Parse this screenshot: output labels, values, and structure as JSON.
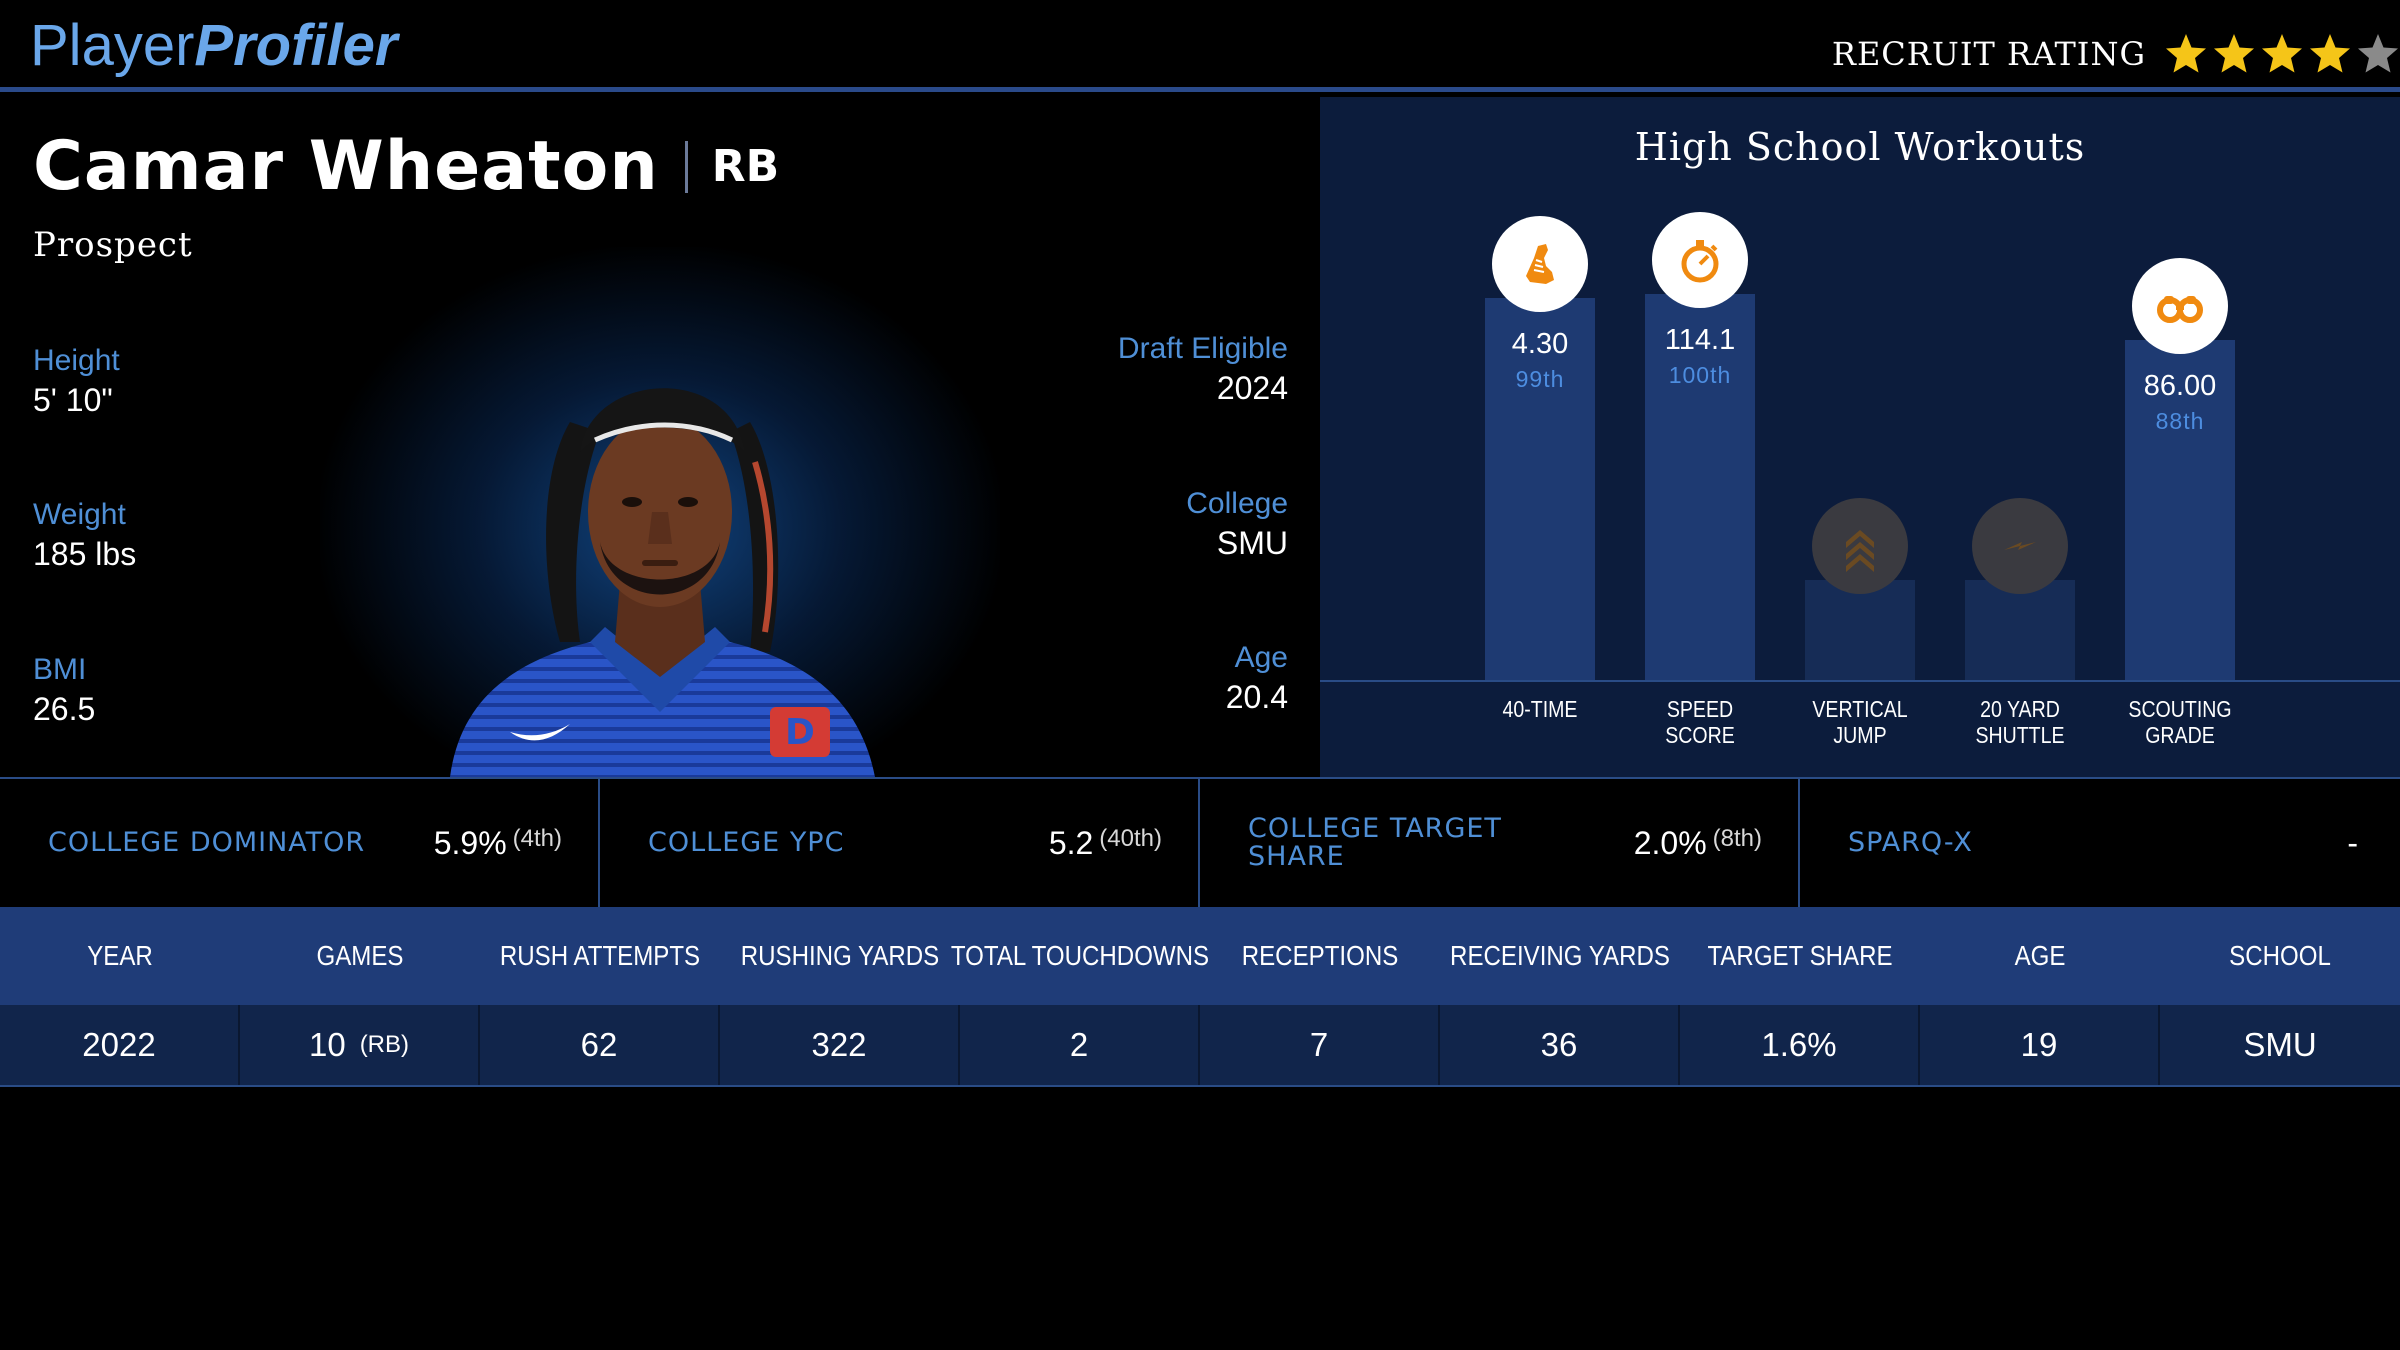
{
  "header": {
    "logo_part1": "Player",
    "logo_part2": "Profiler",
    "rating_label": "RECRUIT RATING",
    "stars_filled": 4,
    "stars_total": 5,
    "star_color": "#f5c518",
    "star_empty_color": "#8a8a8a"
  },
  "profile": {
    "name": "Camar Wheaton",
    "position": "RB",
    "status": "Prospect",
    "left_stats": [
      {
        "label": "Height",
        "value": "5' 10\""
      },
      {
        "label": "Weight",
        "value": "185 lbs"
      },
      {
        "label": "BMI",
        "value": "26.5"
      }
    ],
    "right_stats": [
      {
        "label": "Draft Eligible",
        "value": "2024"
      },
      {
        "label": "College",
        "value": "SMU"
      },
      {
        "label": "Age",
        "value": "20.4"
      }
    ]
  },
  "workouts": {
    "title": "High School Workouts",
    "items": [
      {
        "label_line1": "40-TIME",
        "label_line2": "",
        "value": "4.30",
        "percentile": "99th",
        "percentile_value": 99,
        "icon": "running-shoe-icon"
      },
      {
        "label_line1": "SPEED",
        "label_line2": "SCORE",
        "value": "114.1",
        "percentile": "100th",
        "percentile_value": 100,
        "icon": "stopwatch-icon"
      },
      {
        "label_line1": "VERTICAL",
        "label_line2": "JUMP",
        "value": "",
        "percentile": "",
        "percentile_value": null,
        "icon": "chevrons-up-icon"
      },
      {
        "label_line1": "20 YARD",
        "label_line2": "SHUTTLE",
        "value": "",
        "percentile": "",
        "percentile_value": null,
        "icon": "lightning-icon"
      },
      {
        "label_line1": "SCOUTING",
        "label_line2": "GRADE",
        "value": "86.00",
        "percentile": "88th",
        "percentile_value": 88,
        "icon": "binoculars-icon"
      }
    ],
    "accent_color": "#f08a10"
  },
  "metrics": [
    {
      "label": "COLLEGE DOMINATOR",
      "value": "5.9%",
      "rank": "(4th)"
    },
    {
      "label": "COLLEGE YPC",
      "value": "5.2",
      "rank": "(40th)"
    },
    {
      "label": "COLLEGE TARGET SHARE",
      "value": "2.0%",
      "rank": "(8th)"
    },
    {
      "label": "SPARQ-X",
      "value": "-",
      "rank": ""
    }
  ],
  "table": {
    "columns": [
      "YEAR",
      "GAMES",
      "RUSH ATTEMPTS",
      "RUSHING YARDS",
      "TOTAL TOUCHDOWNS",
      "RECEPTIONS",
      "RECEIVING YARDS",
      "TARGET SHARE",
      "AGE",
      "SCHOOL"
    ],
    "rows": [
      {
        "year": "2022",
        "games": "10",
        "games_pos": "(RB)",
        "rush_attempts": "62",
        "rushing_yards": "322",
        "total_touchdowns": "2",
        "receptions": "7",
        "receiving_yards": "36",
        "target_share": "1.6%",
        "age": "19",
        "school": "SMU"
      }
    ]
  }
}
